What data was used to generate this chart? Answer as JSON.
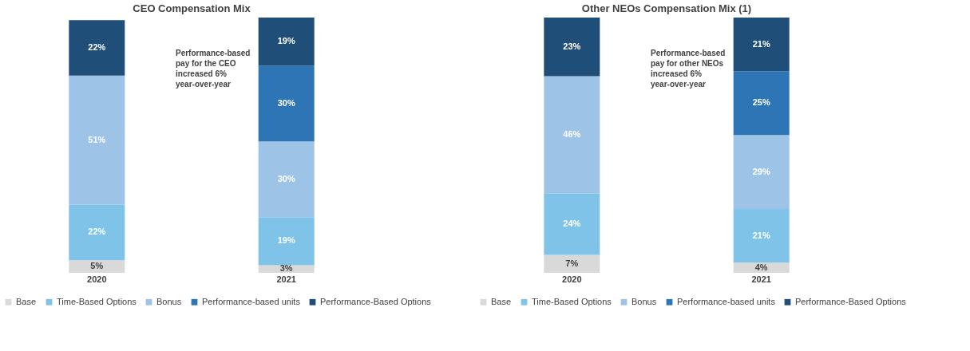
{
  "chart_data": [
    {
      "type": "bar",
      "title": "CEO Compensation Mix",
      "categories": [
        "2020",
        "2021"
      ],
      "stacked": true,
      "legend": "bottom",
      "grid": false,
      "series": [
        {
          "name": "Base",
          "color": "#d9d9d9",
          "values": [
            5,
            3
          ],
          "value_labels": [
            "5%",
            "3%"
          ]
        },
        {
          "name": "Time-Based Options",
          "color": "#7fc4e8",
          "values": [
            22,
            19
          ],
          "value_labels": [
            "22%",
            "19%"
          ]
        },
        {
          "name": "Bonus",
          "color": "#9dc3e6",
          "values": [
            51,
            30
          ],
          "value_labels": [
            "51%",
            "30%"
          ]
        },
        {
          "name": "Performance-based units",
          "color": "#2e75b6",
          "values": [
            null,
            30
          ],
          "value_labels": [
            null,
            "30%"
          ]
        },
        {
          "name": "Performance-Based Options",
          "color": "#1f4e79",
          "values": [
            22,
            19
          ],
          "value_labels": [
            "22%",
            "19%"
          ]
        }
      ],
      "annotations": [
        "Performance-based pay for the CEO increased 6% year-over-year"
      ]
    },
    {
      "type": "bar",
      "title": "Other NEOs Compensation Mix (1)",
      "categories": [
        "2020",
        "2021"
      ],
      "stacked": true,
      "legend": "bottom",
      "grid": false,
      "series": [
        {
          "name": "Base",
          "color": "#d9d9d9",
          "values": [
            7,
            4
          ],
          "value_labels": [
            "7%",
            "4%"
          ]
        },
        {
          "name": "Time-Based Options",
          "color": "#7fc4e8",
          "values": [
            24,
            21
          ],
          "value_labels": [
            "24%",
            "21%"
          ]
        },
        {
          "name": "Bonus",
          "color": "#9dc3e6",
          "values": [
            46,
            29
          ],
          "value_labels": [
            "46%",
            "29%"
          ]
        },
        {
          "name": "Performance-based units",
          "color": "#2e75b6",
          "values": [
            null,
            25
          ],
          "value_labels": [
            null,
            "25%"
          ]
        },
        {
          "name": "Performance-Based Options",
          "color": "#1f4e79",
          "values": [
            23,
            21
          ],
          "value_labels": [
            "23%",
            "21%"
          ]
        }
      ],
      "annotations": [
        "Performance-based pay for other NEOs increased 6% year-over-year"
      ]
    }
  ]
}
